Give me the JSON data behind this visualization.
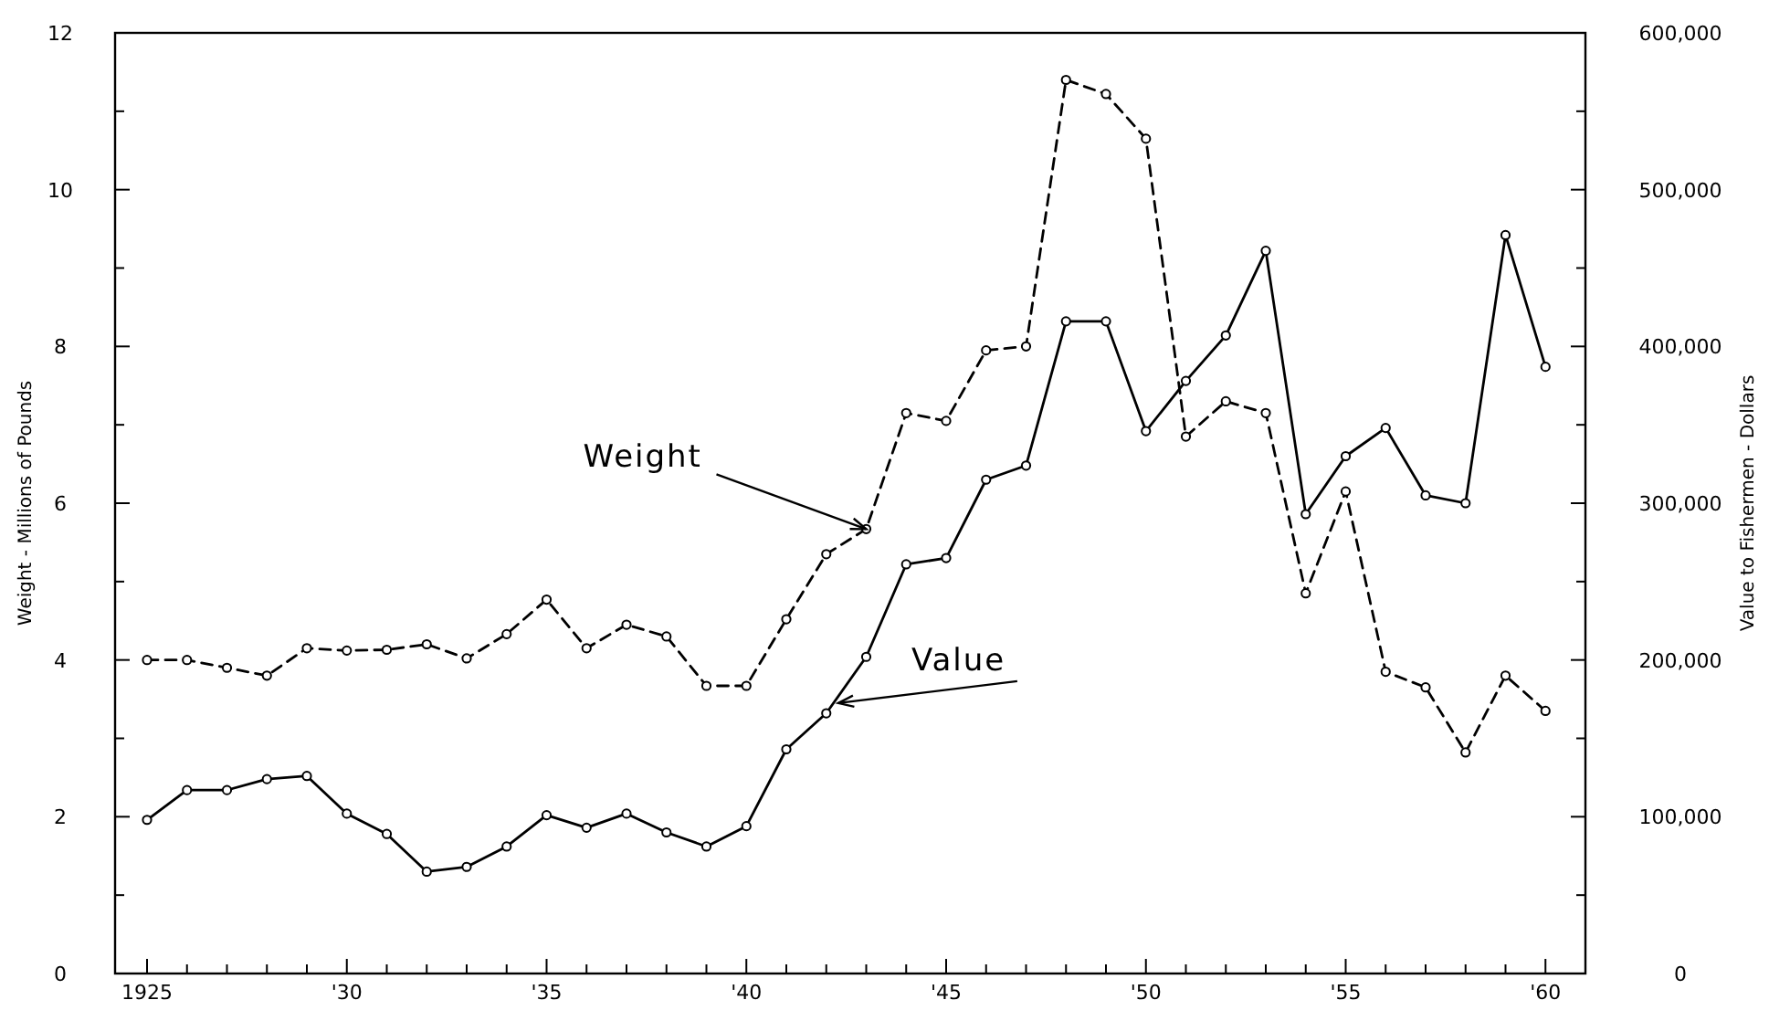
{
  "chart_data": {
    "type": "line",
    "xlabel": null,
    "ylabel": "Weight - Millions of Pounds",
    "y2label": "Value to Fishermen - Dollars",
    "x": [
      1925,
      1926,
      1927,
      1928,
      1929,
      1930,
      1931,
      1932,
      1933,
      1934,
      1935,
      1936,
      1937,
      1938,
      1939,
      1940,
      1941,
      1942,
      1943,
      1944,
      1945,
      1946,
      1947,
      1948,
      1949,
      1950,
      1951,
      1952,
      1953,
      1954,
      1955,
      1956,
      1957,
      1958,
      1959,
      1960
    ],
    "series": [
      {
        "color": "#000000",
        "line_style": "dashed",
        "marker": "circle",
        "values": [
          4.0,
          4.0,
          3.9,
          3.8,
          4.15,
          4.12,
          4.13,
          4.2,
          4.02,
          4.33,
          4.77,
          4.15,
          4.45,
          4.3,
          3.67,
          3.67,
          4.52,
          5.35,
          5.67,
          7.15,
          7.05,
          7.95,
          8.0,
          11.4,
          11.22,
          10.65,
          6.85,
          7.3,
          7.15,
          4.85,
          6.15,
          3.85,
          3.65,
          2.82,
          3.8,
          3.35
        ]
      },
      {
        "color": "#000000",
        "line_style": "solid",
        "marker": "circle",
        "axis": "y2",
        "values": [
          98000,
          117000,
          117000,
          124000,
          126000,
          102000,
          89000,
          65000,
          68000,
          81000,
          101000,
          93000,
          102000,
          90000,
          81000,
          94000,
          143000,
          166000,
          202000,
          261000,
          265000,
          315000,
          324000,
          416000,
          416000,
          346000,
          378000,
          407000,
          461000,
          293000,
          330000,
          348000,
          305000,
          300000,
          471000,
          387000
        ]
      }
    ],
    "xlim": [
      1924.2,
      1961
    ],
    "xticks": [
      1925,
      {
        "value": 1926,
        "label": null
      },
      {
        "value": 1927,
        "label": null
      },
      {
        "value": 1928,
        "label": null
      },
      {
        "value": 1929,
        "label": null
      },
      {
        "value": 1930,
        "label": "'30"
      },
      {
        "value": 1931,
        "label": null
      },
      {
        "value": 1932,
        "label": null
      },
      {
        "value": 1933,
        "label": null
      },
      {
        "value": 1934,
        "label": null
      },
      {
        "value": 1935,
        "label": "'35"
      },
      {
        "value": 1936,
        "label": null
      },
      {
        "value": 1937,
        "label": null
      },
      {
        "value": 1938,
        "label": null
      },
      {
        "value": 1939,
        "label": null
      },
      {
        "value": 1940,
        "label": "'40"
      },
      {
        "value": 1941,
        "label": null
      },
      {
        "value": 1942,
        "label": null
      },
      {
        "value": 1943,
        "label": null
      },
      {
        "value": 1944,
        "label": null
      },
      {
        "value": 1945,
        "label": "'45"
      },
      {
        "value": 1946,
        "label": null
      },
      {
        "value": 1947,
        "label": null
      },
      {
        "value": 1948,
        "label": null
      },
      {
        "value": 1949,
        "label": null
      },
      {
        "value": 1950,
        "label": "'50"
      },
      {
        "value": 1951,
        "label": null
      },
      {
        "value": 1952,
        "label": null
      },
      {
        "value": 1953,
        "label": null
      },
      {
        "value": 1954,
        "label": null
      },
      {
        "value": 1955,
        "label": "'55"
      },
      {
        "value": 1956,
        "label": null
      },
      {
        "value": 1957,
        "label": null
      },
      {
        "value": 1958,
        "label": null
      },
      {
        "value": 1959,
        "label": null
      },
      {
        "value": 1960,
        "label": "'60"
      }
    ],
    "ylim": [
      0,
      12
    ],
    "yticks": [
      0,
      {
        "value": 1,
        "label": null
      },
      2,
      {
        "value": 3,
        "label": null
      },
      4,
      {
        "value": 5,
        "label": null
      },
      6,
      {
        "value": 7,
        "label": null
      },
      8,
      {
        "value": 9,
        "label": null
      },
      10,
      {
        "value": 11,
        "label": null
      },
      12
    ],
    "y2lim": [
      0,
      600000
    ],
    "y2ticks": [
      0,
      {
        "value": 50000,
        "label": null
      },
      {
        "value": 100000,
        "label": "100,000"
      },
      {
        "value": 150000,
        "label": null
      },
      {
        "value": 200000,
        "label": "200,000"
      },
      {
        "value": 250000,
        "label": null
      },
      {
        "value": 300000,
        "label": "300,000"
      },
      {
        "value": 350000,
        "label": null
      },
      {
        "value": 400000,
        "label": "400,000"
      },
      {
        "value": 450000,
        "label": null
      },
      {
        "value": 500000,
        "label": "500,000"
      },
      {
        "value": 550000,
        "label": null
      },
      {
        "value": 600000,
        "label": "600,000"
      }
    ],
    "grid": false,
    "annotations": [
      {
        "text": "Weight",
        "x": 1943,
        "y": 5.67
      },
      {
        "text": "Value",
        "x": 1942.3,
        "y": 3.45
      }
    ]
  }
}
